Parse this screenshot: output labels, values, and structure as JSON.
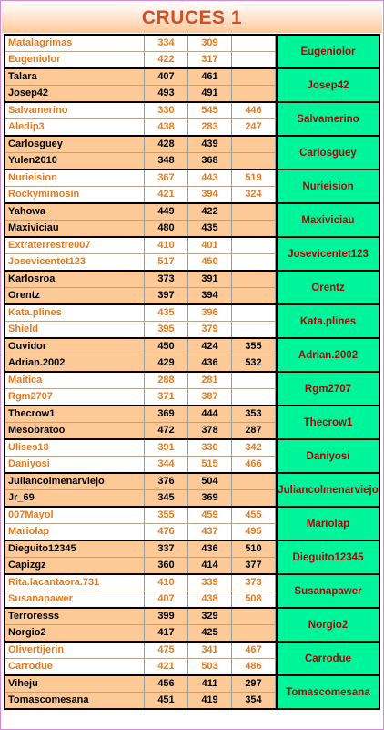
{
  "title": "CRUCES 1",
  "matches": [
    {
      "style": "white",
      "rows": [
        {
          "name": "Matalagrimas",
          "s1": "334",
          "s2": "309",
          "s3": ""
        },
        {
          "name": "Eugeniolor",
          "s1": "422",
          "s2": "317",
          "s3": ""
        }
      ],
      "winner": "Eugeniolor"
    },
    {
      "style": "peach",
      "rows": [
        {
          "name": "Talara",
          "s1": "407",
          "s2": "461",
          "s3": ""
        },
        {
          "name": "Josep42",
          "s1": "493",
          "s2": "491",
          "s3": ""
        }
      ],
      "winner": "Josep42"
    },
    {
      "style": "white",
      "rows": [
        {
          "name": "Salvamerino",
          "s1": "330",
          "s2": "545",
          "s3": "446"
        },
        {
          "name": "Aledip3",
          "s1": "438",
          "s2": "283",
          "s3": "247"
        }
      ],
      "winner": "Salvamerino"
    },
    {
      "style": "peach",
      "rows": [
        {
          "name": "Carlosguey",
          "s1": "428",
          "s2": "439",
          "s3": ""
        },
        {
          "name": "Yulen2010",
          "s1": "348",
          "s2": "368",
          "s3": ""
        }
      ],
      "winner": "Carlosguey"
    },
    {
      "style": "white",
      "rows": [
        {
          "name": "Nurieision",
          "s1": "367",
          "s2": "443",
          "s3": "519"
        },
        {
          "name": "Rockymimosin",
          "s1": "421",
          "s2": "394",
          "s3": "324"
        }
      ],
      "winner": "Nurieision"
    },
    {
      "style": "peach",
      "rows": [
        {
          "name": "Yahowa",
          "s1": "449",
          "s2": "422",
          "s3": ""
        },
        {
          "name": "Maxiviciau",
          "s1": "480",
          "s2": "435",
          "s3": ""
        }
      ],
      "winner": "Maxiviciau"
    },
    {
      "style": "white",
      "rows": [
        {
          "name": "Extraterrestre007",
          "s1": "410",
          "s2": "401",
          "s3": ""
        },
        {
          "name": "Josevicentet123",
          "s1": "517",
          "s2": "450",
          "s3": ""
        }
      ],
      "winner": "Josevicentet123"
    },
    {
      "style": "peach",
      "rows": [
        {
          "name": "Karlosroa",
          "s1": "373",
          "s2": "391",
          "s3": ""
        },
        {
          "name": "Orentz",
          "s1": "397",
          "s2": "394",
          "s3": ""
        }
      ],
      "winner": "Orentz"
    },
    {
      "style": "white",
      "rows": [
        {
          "name": "Kata.plines",
          "s1": "435",
          "s2": "396",
          "s3": ""
        },
        {
          "name": "Shield",
          "s1": "395",
          "s2": "379",
          "s3": ""
        }
      ],
      "winner": "Kata.plines"
    },
    {
      "style": "peach",
      "rows": [
        {
          "name": "Ouvidor",
          "s1": "450",
          "s2": "424",
          "s3": "355"
        },
        {
          "name": "Adrian.2002",
          "s1": "429",
          "s2": "436",
          "s3": "532"
        }
      ],
      "winner": "Adrian.2002"
    },
    {
      "style": "white",
      "rows": [
        {
          "name": "Maitica",
          "s1": "288",
          "s2": "281",
          "s3": ""
        },
        {
          "name": "Rgm2707",
          "s1": "371",
          "s2": "387",
          "s3": ""
        }
      ],
      "winner": "Rgm2707"
    },
    {
      "style": "peach",
      "rows": [
        {
          "name": "Thecrow1",
          "s1": "369",
          "s2": "444",
          "s3": "353"
        },
        {
          "name": "Mesobratoo",
          "s1": "472",
          "s2": "378",
          "s3": "287"
        }
      ],
      "winner": "Thecrow1"
    },
    {
      "style": "white",
      "rows": [
        {
          "name": "Ulises18",
          "s1": "391",
          "s2": "330",
          "s3": "342"
        },
        {
          "name": "Daniyosi",
          "s1": "344",
          "s2": "515",
          "s3": "466"
        }
      ],
      "winner": "Daniyosi"
    },
    {
      "style": "peach",
      "rows": [
        {
          "name": "Juliancolmenarviejo",
          "s1": "376",
          "s2": "504",
          "s3": ""
        },
        {
          "name": "Jr_69",
          "s1": "345",
          "s2": "369",
          "s3": ""
        }
      ],
      "winner": "Juliancolmenarviejo"
    },
    {
      "style": "white",
      "rows": [
        {
          "name": "007Mayol",
          "s1": "355",
          "s2": "459",
          "s3": "455"
        },
        {
          "name": "Mariolap",
          "s1": "476",
          "s2": "437",
          "s3": "495"
        }
      ],
      "winner": "Mariolap"
    },
    {
      "style": "peach",
      "rows": [
        {
          "name": "Dieguito12345",
          "s1": "337",
          "s2": "436",
          "s3": "510"
        },
        {
          "name": "Capizgz",
          "s1": "360",
          "s2": "414",
          "s3": "377"
        }
      ],
      "winner": "Dieguito12345"
    },
    {
      "style": "white",
      "rows": [
        {
          "name": "Rita.lacantaora.731",
          "s1": "410",
          "s2": "339",
          "s3": "373"
        },
        {
          "name": "Susanapawer",
          "s1": "407",
          "s2": "438",
          "s3": "508"
        }
      ],
      "winner": "Susanapawer"
    },
    {
      "style": "peach",
      "rows": [
        {
          "name": "Terroresss",
          "s1": "399",
          "s2": "329",
          "s3": ""
        },
        {
          "name": "Norgio2",
          "s1": "417",
          "s2": "425",
          "s3": ""
        }
      ],
      "winner": "Norgio2"
    },
    {
      "style": "white",
      "rows": [
        {
          "name": "Olivertijerin",
          "s1": "475",
          "s2": "341",
          "s3": "467"
        },
        {
          "name": "Carrodue",
          "s1": "421",
          "s2": "503",
          "s3": "486"
        }
      ],
      "winner": "Carrodue"
    },
    {
      "style": "peach",
      "rows": [
        {
          "name": "Viheju",
          "s1": "456",
          "s2": "411",
          "s3": "297"
        },
        {
          "name": "Tomascomesana",
          "s1": "451",
          "s2": "419",
          "s3": "354"
        }
      ],
      "winner": "Tomascomesana"
    }
  ]
}
